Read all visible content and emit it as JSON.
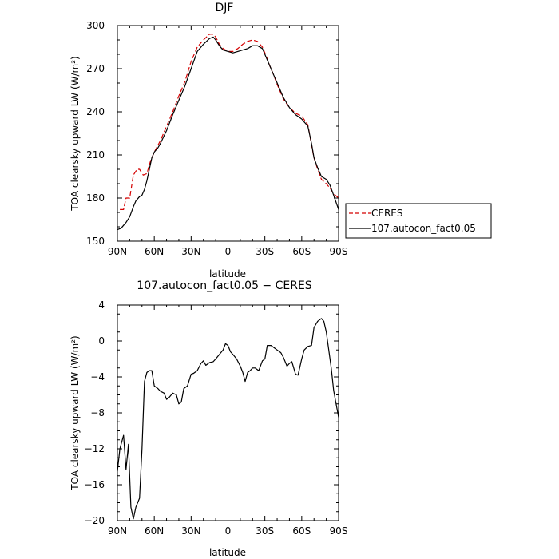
{
  "chart_data": [
    {
      "type": "line",
      "title": "DJF",
      "xlabel": "latitude",
      "ylabel": "TOA clearsky upward LW (W/m²)",
      "xlim": [
        90,
        -90
      ],
      "ylim": [
        150,
        300
      ],
      "xticks": [
        90,
        60,
        30,
        0,
        -30,
        -60,
        -90
      ],
      "xtick_labels": [
        "90N",
        "60N",
        "30N",
        "0",
        "30S",
        "60S",
        "90S"
      ],
      "yticks": [
        150,
        180,
        210,
        240,
        270,
        300
      ],
      "ytick_labels": [
        "150",
        "180",
        "210",
        "240",
        "270",
        "300"
      ],
      "legend_position": "right",
      "series": [
        {
          "name": "CERES",
          "color": "#d40000",
          "style": "dashed",
          "x": [
            88,
            85,
            83,
            80,
            77,
            74,
            72,
            69,
            66,
            63,
            60,
            55,
            50,
            45,
            40,
            35,
            30,
            25,
            20,
            15,
            12,
            10,
            7,
            4,
            0,
            -4,
            -8,
            -12,
            -16,
            -20,
            -24,
            -28,
            -31,
            -34,
            -37,
            -40,
            -45,
            -50,
            -55,
            -60,
            -65,
            -68,
            -70,
            -73,
            -76,
            -80,
            -83,
            -86,
            -90
          ],
          "y": [
            172,
            172,
            180,
            180,
            196,
            200,
            200,
            196,
            197,
            206,
            212,
            220,
            230,
            240,
            251,
            261,
            275,
            285,
            290,
            294,
            294,
            292,
            287,
            284,
            282,
            282,
            284,
            287,
            289,
            290,
            289,
            285,
            279,
            272,
            266,
            259,
            249,
            243,
            239,
            237,
            231,
            217,
            208,
            200,
            193,
            190,
            187,
            183,
            180
          ]
        },
        {
          "name": "107.autocon_fact0.05",
          "color": "#000000",
          "style": "solid",
          "x": [
            90,
            87,
            85,
            83,
            80,
            77,
            75,
            72,
            70,
            68,
            66,
            64,
            62,
            60,
            57,
            55,
            50,
            45,
            40,
            35,
            30,
            25,
            20,
            15,
            12,
            10,
            7,
            4,
            0,
            -4,
            -8,
            -12,
            -16,
            -20,
            -24,
            -28,
            -31,
            -34,
            -37,
            -40,
            -45,
            -50,
            -55,
            -60,
            -65,
            -68,
            -70,
            -73,
            -76,
            -80,
            -83,
            -86,
            -90
          ],
          "y": [
            158,
            159,
            161,
            163,
            167,
            174,
            178,
            181,
            182,
            186,
            192,
            200,
            208,
            212,
            215,
            218,
            227,
            238,
            248,
            258,
            270,
            282,
            287,
            291,
            292,
            290,
            286,
            283,
            282,
            281,
            282,
            283,
            284,
            286,
            286,
            284,
            278,
            272,
            266,
            260,
            250,
            243,
            238,
            235,
            230,
            218,
            208,
            201,
            195,
            193,
            189,
            182,
            172
          ]
        }
      ]
    },
    {
      "type": "line",
      "title": "107.autocon_fact0.05 − CERES",
      "xlabel": "latitude",
      "ylabel": "TOA clearsky upward LW (W/m²)",
      "xlim": [
        90,
        -90
      ],
      "ylim": [
        -20,
        4
      ],
      "xticks": [
        90,
        60,
        30,
        0,
        -30,
        -60,
        -90
      ],
      "xtick_labels": [
        "90N",
        "60N",
        "30N",
        "0",
        "30S",
        "60S",
        "90S"
      ],
      "yticks": [
        -20,
        -16,
        -12,
        -8,
        -4,
        0,
        4
      ],
      "ytick_labels": [
        "−20",
        "−16",
        "−12",
        "−8",
        "−4",
        "0",
        "4"
      ],
      "series": [
        {
          "color": "#000000",
          "style": "solid",
          "x": [
            90,
            88,
            85,
            83,
            81,
            79,
            77,
            75,
            72,
            70,
            68,
            66,
            64,
            62,
            60,
            57,
            55,
            52,
            50,
            48,
            45,
            42,
            40,
            38,
            36,
            33,
            30,
            28,
            25,
            22,
            20,
            18,
            15,
            12,
            10,
            7,
            4,
            2,
            0,
            -2,
            -4,
            -7,
            -10,
            -12,
            -14,
            -16,
            -18,
            -20,
            -22,
            -25,
            -28,
            -30,
            -32,
            -35,
            -38,
            -40,
            -43,
            -45,
            -48,
            -50,
            -52,
            -55,
            -57,
            -60,
            -62,
            -65,
            -68,
            -70,
            -73,
            -76,
            -78,
            -80,
            -82,
            -84,
            -86,
            -88,
            -90
          ],
          "y": [
            -14.5,
            -12,
            -10.5,
            -14.3,
            -11.5,
            -18.5,
            -19.8,
            -18.5,
            -17.5,
            -12,
            -4.5,
            -3.5,
            -3.3,
            -3.3,
            -5.0,
            -5.3,
            -5.6,
            -5.8,
            -6.5,
            -6.3,
            -5.8,
            -6.0,
            -7.0,
            -6.8,
            -5.3,
            -5.0,
            -3.7,
            -3.6,
            -3.3,
            -2.5,
            -2.2,
            -2.7,
            -2.4,
            -2.3,
            -2.0,
            -1.5,
            -1.0,
            -0.3,
            -0.5,
            -1.2,
            -1.5,
            -2.0,
            -2.8,
            -3.5,
            -4.5,
            -3.5,
            -3.3,
            -3.0,
            -3.0,
            -3.3,
            -2.2,
            -2.0,
            -0.5,
            -0.5,
            -0.8,
            -1.0,
            -1.3,
            -1.8,
            -2.8,
            -2.5,
            -2.3,
            -3.7,
            -3.8,
            -2.0,
            -1.0,
            -0.6,
            -0.5,
            1.5,
            2.2,
            2.5,
            2.2,
            1.0,
            -1.0,
            -3.0,
            -5.5,
            -7.0,
            -8.5
          ]
        }
      ]
    }
  ]
}
